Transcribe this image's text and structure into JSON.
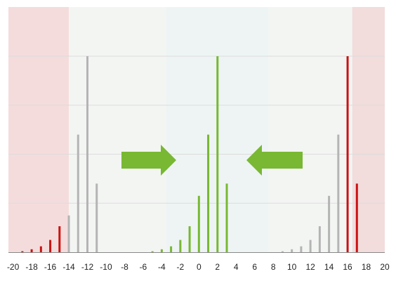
{
  "chart_data": {
    "type": "bar",
    "xlim": [
      -20.5,
      20
    ],
    "ylim": [
      0,
      4
    ],
    "grid": true,
    "ticks": [
      -20,
      -18,
      -16,
      -14,
      -12,
      -10,
      -8,
      -6,
      -4,
      -2,
      0,
      2,
      4,
      6,
      8,
      10,
      12,
      14,
      16,
      18,
      20
    ],
    "regions": [
      {
        "name": "left-outside",
        "from": -20.5,
        "to": -14,
        "color": "#f5dcdc"
      },
      {
        "name": "left-middle",
        "from": -14,
        "to": -3.5,
        "color": "#f3f5f3"
      },
      {
        "name": "center",
        "from": -3.5,
        "to": 7.5,
        "color": "#eef4f4"
      },
      {
        "name": "right-middle",
        "from": 7.5,
        "to": 16.5,
        "color": "#f3f5f3"
      },
      {
        "name": "right-outside",
        "from": 16.5,
        "to": 20,
        "color": "#f2dcdc"
      }
    ],
    "series": [
      {
        "color": "#cc1111",
        "x": [
          -19,
          -18,
          -17,
          -16,
          -15,
          16,
          17
        ],
        "y": [
          0.02,
          0.06,
          0.12,
          0.25,
          0.53,
          4.0,
          1.4
        ]
      },
      {
        "color": "#b4b4b4",
        "x": [
          -14,
          -13,
          -12,
          -11,
          9,
          10,
          11,
          12,
          13,
          14,
          15
        ],
        "y": [
          0.75,
          2.4,
          4.0,
          1.4,
          0.02,
          0.06,
          0.12,
          0.25,
          0.53,
          1.15,
          2.4
        ]
      },
      {
        "color": "#78b832",
        "x": [
          -5,
          -4,
          -3,
          -2,
          -1,
          0,
          1,
          2,
          3
        ],
        "y": [
          0.02,
          0.06,
          0.12,
          0.25,
          0.53,
          1.15,
          2.4,
          4.0,
          1.4
        ]
      }
    ],
    "annotations": [
      {
        "type": "arrow",
        "direction": "right",
        "color": "#78b832"
      },
      {
        "type": "arrow",
        "direction": "left",
        "color": "#78b832"
      }
    ]
  }
}
